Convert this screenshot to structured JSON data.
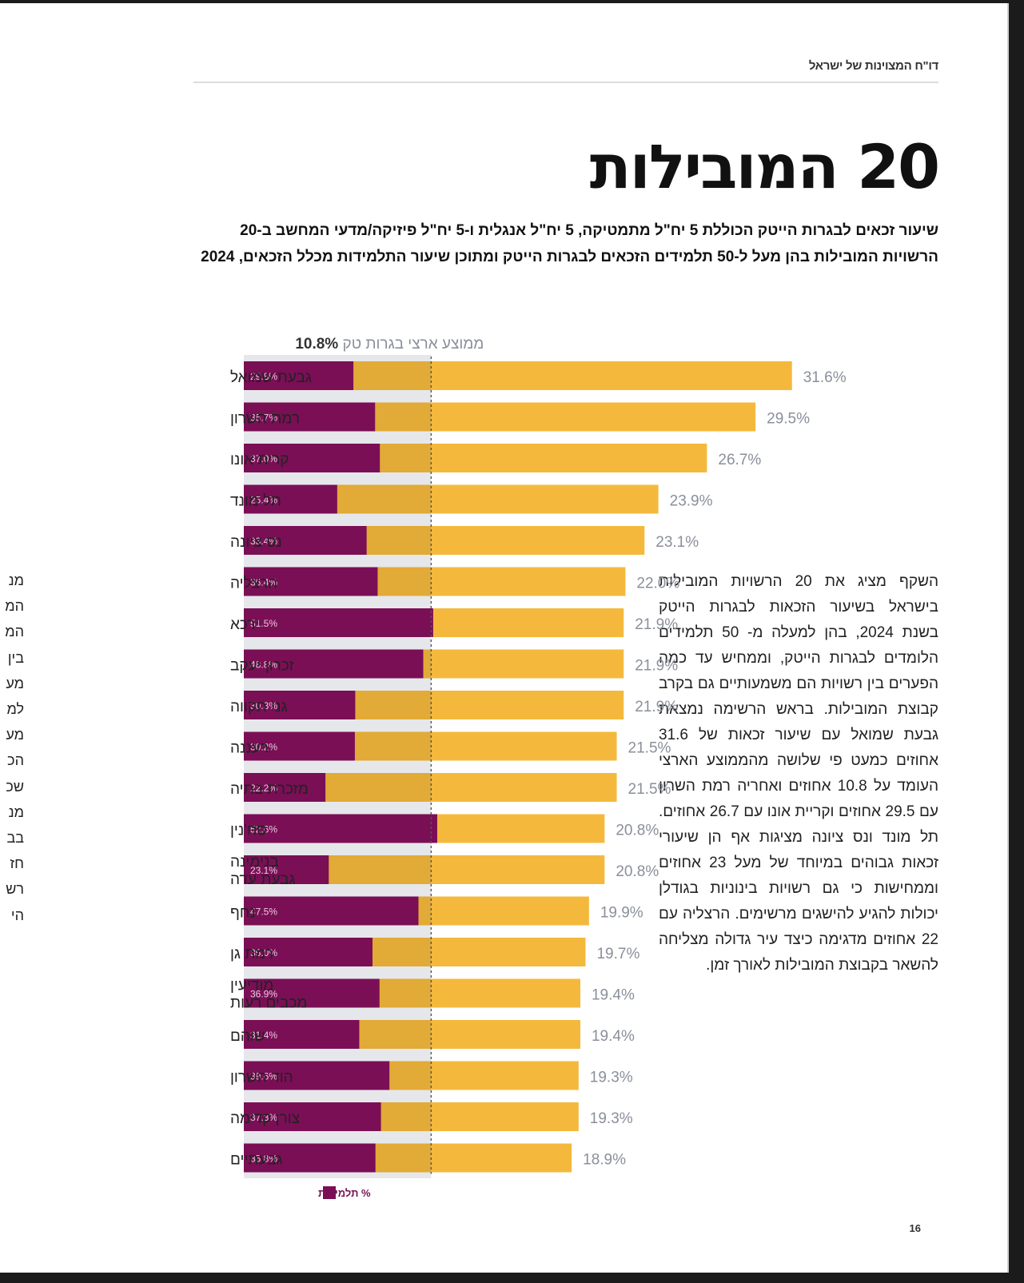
{
  "page": {
    "running_head": "דו\"ח המצוינות של ישראל",
    "title": "20 המובילות",
    "subtitle": "שיעור זכאים לבגרות הייטק הכוללת 5 יח\"ל מתמטיקה, 5 יח\"ל אנגלית ו-5 יח\"ל פיזיקה/מדעי המחשב ב-20 הרשויות המובילות בהן מעל ל-50 תלמידים הזכאים לבגרות הייטק ומתוכן שיעור התלמידות מכלל הזכאים, 2024",
    "body_text": "השקף מציג את 20 הרשויות המובילות בישראל בשיעור הזכאות לבגרות הייטק בשנת 2024, בהן למעלה מ- 50 תלמידים הלומדים לבגרות הייטק, וממחיש עד כמה הפערים בין רשויות הם משמעותיים גם בקרב קבוצת המובילות. בראש הרשימה נמצאת גבעת שמואל עם שיעור זכאות של 31.6 אחוזים כמעט פי שלושה מהממוצע הארצי העומד על 10.8 אחוזים ואחריה רמת השרון עם 29.5 אחוזים וקריית אונו עם 26.7 אחוזים. תל מונד ונס ציונה מציגות אף הן שיעורי זכאות גבוהים במיוחד של מעל 23 אחוזים וממחישות כי גם רשויות בינוניות בגודלן יכולות להגיע להישגים מרשימים. הרצליה עם 22 אחוזים מדגימה כיצד עיר גדולה מצליחה להשאר בקבוצת המובילות לאורך זמן.",
    "left_page_fragment": [
      "מנ",
      "המ",
      "המ",
      "בין",
      "מע",
      "למ",
      "מע",
      "הכ",
      "שכ",
      "מנ",
      "בב",
      "חז",
      "רש",
      "הי"
    ],
    "page_number": "16"
  },
  "chart_data": {
    "type": "bar",
    "orientation": "horizontal",
    "title": "20 המובילות",
    "xlabel": "",
    "ylabel": "",
    "xlim": [
      0,
      33
    ],
    "grid": false,
    "reference_line": {
      "label": "ממוצע ארצי בגרות טק",
      "value": 10.8,
      "value_label": "10.8%"
    },
    "legend": {
      "position": "bottom-left",
      "entries": [
        {
          "name": "% תלמידות",
          "color": "#7a0f56"
        }
      ]
    },
    "colors": {
      "total": "#f4b93c",
      "female_share": "#7a0f56",
      "below_avg_track": "#e6e7ea",
      "above_avg_overlap": "#e2aa36"
    },
    "categories": [
      "גבעת שמואל",
      "רמת השרון",
      "קרית אונו",
      "תל מונד",
      "נס ציונה",
      "הרצליה",
      "ירכא",
      "זכרון יעקב",
      "גני תקווה",
      "רעננה",
      "מזכרת בתיה",
      "סח'נין",
      "בנימינה גבעת עדה",
      "נחף",
      "רמת גן",
      "מודיעין מכבים רעות",
      "שוהם",
      "הוד השרון",
      "צורן קדימה",
      "גבעתיים"
    ],
    "series": [
      {
        "name": "שיעור זכאים לבגרות הייטק",
        "values": [
          31.6,
          29.5,
          26.7,
          23.9,
          23.1,
          22.0,
          21.9,
          21.9,
          21.9,
          21.5,
          21.5,
          20.8,
          20.8,
          19.9,
          19.7,
          19.4,
          19.4,
          19.3,
          19.3,
          18.9
        ],
        "labels": [
          "31.6%",
          "29.5%",
          "26.7%",
          "23.9%",
          "23.1%",
          "22.0%",
          "21.9%",
          "21.9%",
          "21.9%",
          "21.5%",
          "21.5%",
          "20.8%",
          "20.8%",
          "19.9%",
          "19.7%",
          "19.4%",
          "19.4%",
          "19.3%",
          "19.3%",
          "18.9%"
        ]
      },
      {
        "name": "% תלמידות",
        "values": [
          29.8,
          35.7,
          37.0,
          25.4,
          33.4,
          36.4,
          51.5,
          48.8,
          30.3,
          30.2,
          22.2,
          52.6,
          23.1,
          47.5,
          35.0,
          36.9,
          31.4,
          39.6,
          37.3,
          35.8
        ],
        "labels": [
          "29.8%",
          "35.7%",
          "37.0%",
          "25.4%",
          "33.4%",
          "36.4%",
          "51.5%",
          "48.8%",
          "30.3%",
          "30.2%",
          "22.2%",
          "52.6%",
          "23.1%",
          "47.5%",
          "35.0%",
          "36.9%",
          "31.4%",
          "39.6%",
          "37.3%",
          "35.8%"
        ]
      }
    ]
  }
}
